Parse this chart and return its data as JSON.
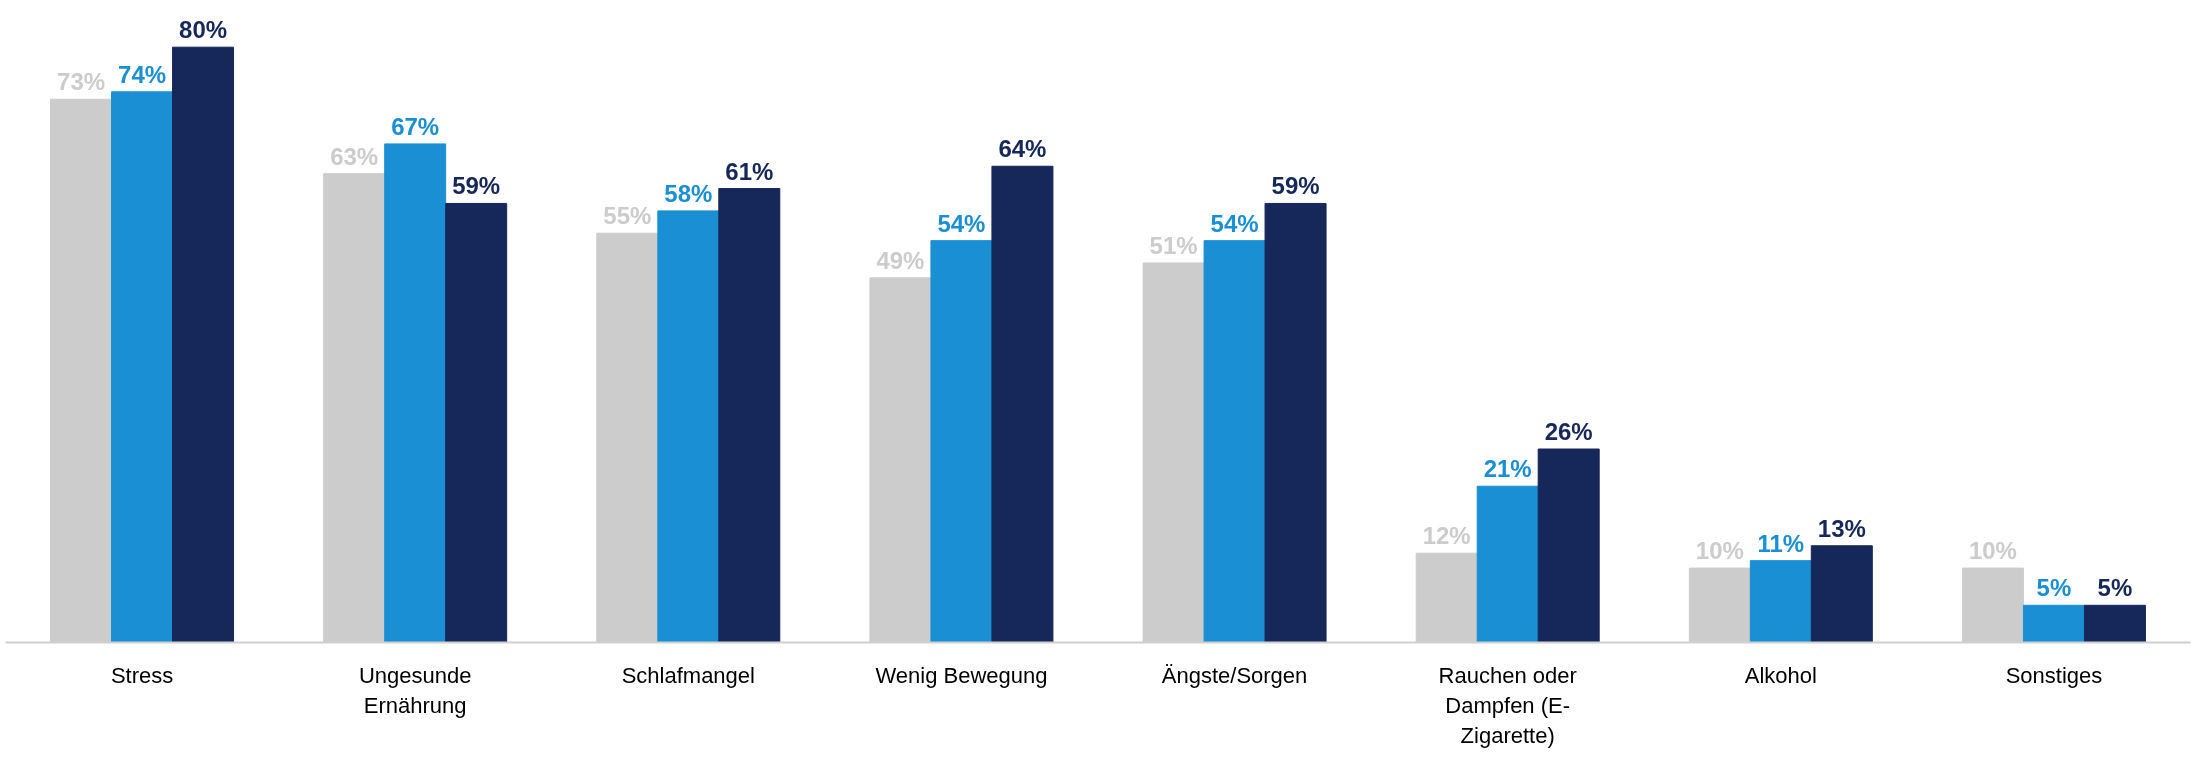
{
  "chart_data": {
    "type": "bar",
    "categories": [
      "Stress",
      "Ungesunde Ernährung",
      "Schlafmangel",
      "Wenig Bewegung",
      "Ängste/Sorgen",
      "Rauchen oder Dampfen (E-Zigarette)",
      "Alkohol",
      "Sonstiges"
    ],
    "series": [
      {
        "color": "#cccccc",
        "values": [
          73,
          63,
          55,
          49,
          51,
          12,
          10,
          10
        ],
        "value_labels": [
          "73%",
          "63%",
          "55%",
          "49%",
          "51%",
          "12%",
          "10%",
          "10%"
        ]
      },
      {
        "color": "#1b8fd4",
        "values": [
          74,
          67,
          58,
          54,
          54,
          21,
          11,
          5
        ],
        "value_labels": [
          "74%",
          "67%",
          "58%",
          "54%",
          "54%",
          "21%",
          "11%",
          "5%"
        ]
      },
      {
        "color": "#16275a",
        "values": [
          80,
          59,
          61,
          64,
          59,
          26,
          13,
          5
        ],
        "value_labels": [
          "80%",
          "59%",
          "61%",
          "64%",
          "59%",
          "26%",
          "13%",
          "5%"
        ]
      }
    ],
    "grid": false
  }
}
